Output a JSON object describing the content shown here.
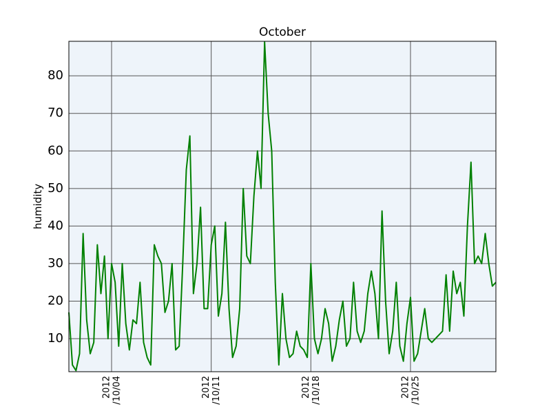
{
  "chart_data": {
    "type": "line",
    "title": "October",
    "y_label": "humidity",
    "x": [
      "2012-10-01T00:00",
      "2012-10-01T06:00",
      "2012-10-01T12:00",
      "2012-10-01T18:00",
      "2012-10-02T00:00",
      "2012-10-02T06:00",
      "2012-10-02T12:00",
      "2012-10-02T18:00",
      "2012-10-03T00:00",
      "2012-10-03T06:00",
      "2012-10-03T12:00",
      "2012-10-03T18:00",
      "2012-10-04T00:00",
      "2012-10-04T06:00",
      "2012-10-04T12:00",
      "2012-10-04T18:00",
      "2012-10-05T00:00",
      "2012-10-05T06:00",
      "2012-10-05T12:00",
      "2012-10-05T18:00",
      "2012-10-06T00:00",
      "2012-10-06T06:00",
      "2012-10-06T12:00",
      "2012-10-06T18:00",
      "2012-10-07T00:00",
      "2012-10-07T06:00",
      "2012-10-07T12:00",
      "2012-10-07T18:00",
      "2012-10-08T00:00",
      "2012-10-08T06:00",
      "2012-10-08T12:00",
      "2012-10-08T18:00",
      "2012-10-09T00:00",
      "2012-10-09T06:00",
      "2012-10-09T12:00",
      "2012-10-09T18:00",
      "2012-10-10T00:00",
      "2012-10-10T06:00",
      "2012-10-10T12:00",
      "2012-10-10T18:00",
      "2012-10-11T00:00",
      "2012-10-11T06:00",
      "2012-10-11T12:00",
      "2012-10-11T18:00",
      "2012-10-12T00:00",
      "2012-10-12T06:00",
      "2012-10-12T12:00",
      "2012-10-12T18:00",
      "2012-10-13T00:00",
      "2012-10-13T06:00",
      "2012-10-13T12:00",
      "2012-10-13T18:00",
      "2012-10-14T00:00",
      "2012-10-14T06:00",
      "2012-10-14T12:00",
      "2012-10-14T18:00",
      "2012-10-15T00:00",
      "2012-10-15T06:00",
      "2012-10-15T12:00",
      "2012-10-15T18:00",
      "2012-10-16T00:00",
      "2012-10-16T06:00",
      "2012-10-16T12:00",
      "2012-10-16T18:00",
      "2012-10-17T00:00",
      "2012-10-17T06:00",
      "2012-10-17T12:00",
      "2012-10-17T18:00",
      "2012-10-18T00:00",
      "2012-10-18T06:00",
      "2012-10-18T12:00",
      "2012-10-18T18:00",
      "2012-10-19T00:00",
      "2012-10-19T06:00",
      "2012-10-19T12:00",
      "2012-10-19T18:00",
      "2012-10-20T00:00",
      "2012-10-20T06:00",
      "2012-10-20T12:00",
      "2012-10-20T18:00",
      "2012-10-21T00:00",
      "2012-10-21T06:00",
      "2012-10-21T12:00",
      "2012-10-21T18:00",
      "2012-10-22T00:00",
      "2012-10-22T06:00",
      "2012-10-22T12:00",
      "2012-10-22T18:00",
      "2012-10-23T00:00",
      "2012-10-23T06:00",
      "2012-10-23T12:00",
      "2012-10-23T18:00",
      "2012-10-24T00:00",
      "2012-10-24T06:00",
      "2012-10-24T12:00",
      "2012-10-24T18:00",
      "2012-10-25T00:00",
      "2012-10-25T06:00",
      "2012-10-25T12:00",
      "2012-10-25T18:00",
      "2012-10-26T00:00",
      "2012-10-26T06:00",
      "2012-10-26T12:00",
      "2012-10-26T18:00",
      "2012-10-27T00:00",
      "2012-10-27T06:00",
      "2012-10-27T12:00",
      "2012-10-27T18:00",
      "2012-10-28T00:00",
      "2012-10-28T06:00",
      "2012-10-28T12:00",
      "2012-10-28T18:00",
      "2012-10-29T00:00",
      "2012-10-29T06:00",
      "2012-10-29T12:00",
      "2012-10-29T18:00",
      "2012-10-30T00:00",
      "2012-10-30T06:00",
      "2012-10-30T12:00",
      "2012-10-30T18:00",
      "2012-10-31T00:00"
    ],
    "series": [
      {
        "color": "#008000",
        "values": [
          17,
          3,
          1.5,
          6,
          38,
          15,
          6,
          9,
          35,
          22,
          32,
          10,
          30,
          25,
          8,
          30,
          14,
          7,
          15,
          14,
          25,
          9,
          5,
          3,
          35,
          32,
          30,
          17,
          20,
          30,
          7,
          8,
          30,
          55,
          64,
          22,
          30,
          45,
          18,
          18,
          35,
          40,
          16,
          22,
          41,
          18,
          5,
          8,
          18,
          50,
          32,
          30,
          48,
          60,
          50,
          89,
          70,
          60,
          25,
          3,
          22,
          10,
          5,
          6,
          12,
          8,
          7,
          5,
          30,
          10,
          6,
          10,
          18,
          14,
          4,
          8,
          15,
          20,
          8,
          10,
          25,
          12,
          9,
          12,
          22,
          28,
          22,
          10,
          44,
          20,
          6,
          12,
          25,
          8,
          4,
          14,
          21,
          4,
          6,
          12,
          18,
          10,
          9,
          10,
          11,
          12,
          27,
          12,
          28,
          22,
          25,
          16,
          40,
          57,
          30,
          32,
          30,
          38,
          30,
          24,
          25
        ]
      }
    ],
    "xlim": [
      "2012-10-01T00:00",
      "2012-10-31T00:00"
    ],
    "xticks": [
      {
        "value": "2012-10-04",
        "label": "2012\n/10/04"
      },
      {
        "value": "2012-10-11",
        "label": "2012\n/10/11"
      },
      {
        "value": "2012-10-18",
        "label": "2012\n/10/18"
      },
      {
        "value": "2012-10-25",
        "label": "2012\n/10/25"
      }
    ],
    "ylim": [
      1.2,
      89.2
    ],
    "yticks": [
      10,
      20,
      30,
      40,
      50,
      60,
      70,
      80
    ],
    "grid": true,
    "background": "#eef4fa"
  }
}
